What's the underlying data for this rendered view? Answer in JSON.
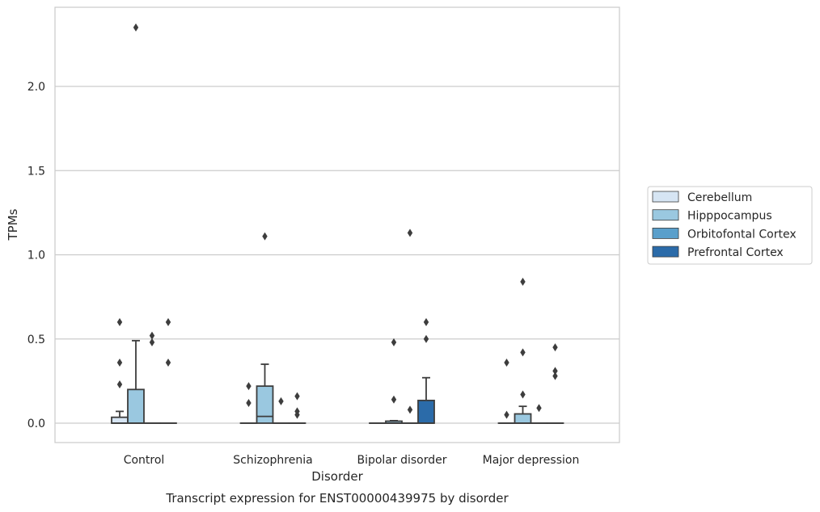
{
  "chart_data": {
    "type": "box",
    "caption": "Transcript expression for ENST00000439975 by disorder",
    "xlabel": "Disorder",
    "ylabel": "TPMs",
    "ylim": [
      -0.12,
      2.48
    ],
    "yticks": [
      0.0,
      0.5,
      1.0,
      1.5,
      2.0
    ],
    "ytick_labels": [
      "0.0",
      "0.5",
      "1.0",
      "1.5",
      "2.0"
    ],
    "grid": "horizontal",
    "legend_position": "right",
    "categories": [
      "Control",
      "Schizophrenia",
      "Bipolar disorder",
      "Major depression"
    ],
    "series": [
      {
        "name": "Cerebellum",
        "color": "#d6e5f3",
        "boxes": [
          {
            "q1": 0.0,
            "median": 0.0,
            "q3": 0.035,
            "whisker_low": 0.0,
            "whisker_high": 0.07,
            "outliers": [
              0.23,
              0.36,
              0.6
            ]
          },
          {
            "q1": 0.0,
            "median": 0.0,
            "q3": 0.0,
            "whisker_low": 0.0,
            "whisker_high": 0.0,
            "outliers": [
              0.12,
              0.22
            ]
          },
          {
            "q1": 0.0,
            "median": 0.0,
            "q3": 0.0,
            "whisker_low": 0.0,
            "whisker_high": 0.0,
            "outliers": []
          },
          {
            "q1": 0.0,
            "median": 0.0,
            "q3": 0.0,
            "whisker_low": 0.0,
            "whisker_high": 0.0,
            "outliers": [
              0.05,
              0.36
            ]
          }
        ]
      },
      {
        "name": "Hipppocampus",
        "color": "#9ac8e0",
        "boxes": [
          {
            "q1": 0.0,
            "median": 0.0,
            "q3": 0.2,
            "whisker_low": 0.0,
            "whisker_high": 0.49,
            "outliers": [
              2.35
            ]
          },
          {
            "q1": 0.0,
            "median": 0.04,
            "q3": 0.22,
            "whisker_low": 0.0,
            "whisker_high": 0.35,
            "outliers": [
              1.11
            ]
          },
          {
            "q1": 0.0,
            "median": 0.0,
            "q3": 0.012,
            "whisker_low": 0.0,
            "whisker_high": 0.015,
            "outliers": [
              0.14,
              0.48
            ]
          },
          {
            "q1": 0.0,
            "median": 0.0,
            "q3": 0.055,
            "whisker_low": 0.0,
            "whisker_high": 0.1,
            "outliers": [
              0.17,
              0.42,
              0.84
            ]
          }
        ]
      },
      {
        "name": "Orbitofontal Cortex",
        "color": "#5a9fcb",
        "boxes": [
          {
            "q1": 0.0,
            "median": 0.0,
            "q3": 0.0,
            "whisker_low": 0.0,
            "whisker_high": 0.0,
            "outliers": [
              0.48,
              0.52
            ]
          },
          {
            "q1": 0.0,
            "median": 0.0,
            "q3": 0.0,
            "whisker_low": 0.0,
            "whisker_high": 0.0,
            "outliers": [
              0.13
            ]
          },
          {
            "q1": 0.0,
            "median": 0.0,
            "q3": 0.0,
            "whisker_low": 0.0,
            "whisker_high": 0.0,
            "outliers": [
              0.08,
              1.13
            ]
          },
          {
            "q1": 0.0,
            "median": 0.0,
            "q3": 0.0,
            "whisker_low": 0.0,
            "whisker_high": 0.0,
            "outliers": [
              0.09
            ]
          }
        ]
      },
      {
        "name": "Prefrontal Cortex",
        "color": "#2b6ba9",
        "boxes": [
          {
            "q1": 0.0,
            "median": 0.0,
            "q3": 0.0,
            "whisker_low": 0.0,
            "whisker_high": 0.0,
            "outliers": [
              0.36,
              0.6
            ]
          },
          {
            "q1": 0.0,
            "median": 0.0,
            "q3": 0.0,
            "whisker_low": 0.0,
            "whisker_high": 0.0,
            "outliers": [
              0.05,
              0.07,
              0.16
            ]
          },
          {
            "q1": 0.0,
            "median": 0.0,
            "q3": 0.135,
            "whisker_low": 0.0,
            "whisker_high": 0.27,
            "outliers": [
              0.5,
              0.6
            ]
          },
          {
            "q1": 0.0,
            "median": 0.0,
            "q3": 0.0,
            "whisker_low": 0.0,
            "whisker_high": 0.0,
            "outliers": [
              0.28,
              0.31,
              0.45
            ]
          }
        ]
      }
    ]
  }
}
